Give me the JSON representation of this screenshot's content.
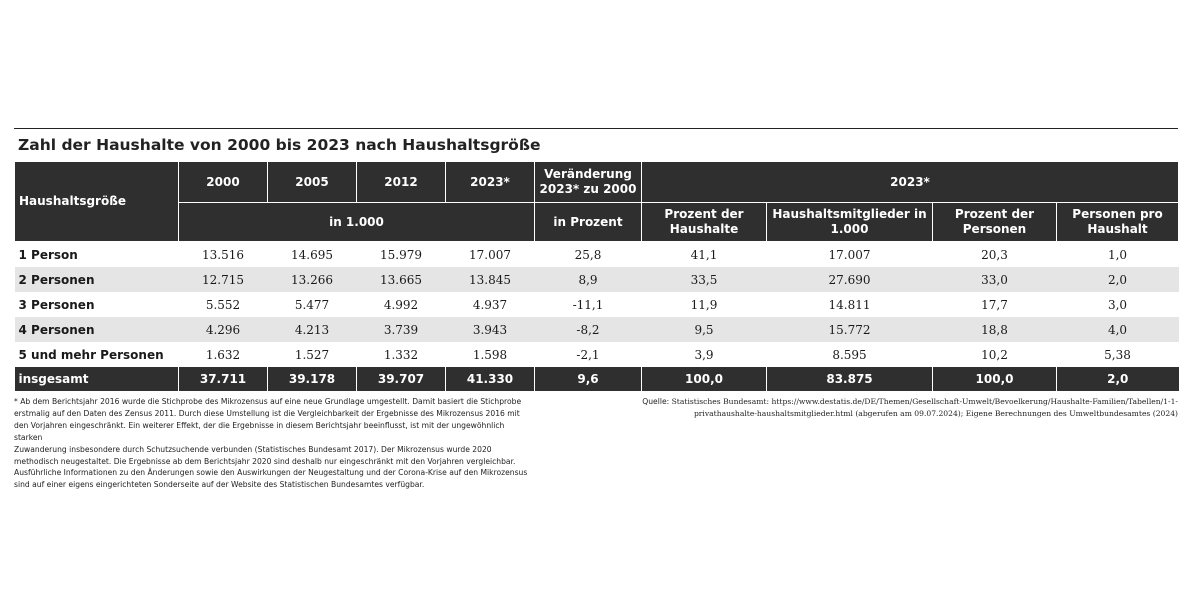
{
  "title": "Zahl der Haushalte von 2000 bis 2023 nach Haushaltsgröße",
  "header": {
    "col_label": "Haushaltsgröße",
    "years": [
      "2000",
      "2005",
      "2012",
      "2023*"
    ],
    "change": "Veränderung 2023* zu 2000",
    "year_2023": "2023*",
    "unit_thousands": "in 1.000",
    "unit_percent": "in Prozent",
    "sub_cols": [
      "Prozent der Haushalte",
      "Haushaltsmitglieder in 1.000",
      "Prozent der Personen",
      "Personen pro Haushalt"
    ]
  },
  "rows": [
    {
      "label": "1 Person",
      "v": [
        "13.516",
        "14.695",
        "15.979",
        "17.007",
        "25,8",
        "41,1",
        "17.007",
        "20,3",
        "1,0"
      ]
    },
    {
      "label": "2 Personen",
      "v": [
        "12.715",
        "13.266",
        "13.665",
        "13.845",
        "8,9",
        "33,5",
        "27.690",
        "33,0",
        "2,0"
      ]
    },
    {
      "label": "3 Personen",
      "v": [
        "5.552",
        "5.477",
        "4.992",
        "4.937",
        "-11,1",
        "11,9",
        "14.811",
        "17,7",
        "3,0"
      ]
    },
    {
      "label": "4 Personen",
      "v": [
        "4.296",
        "4.213",
        "3.739",
        "3.943",
        "-8,2",
        "9,5",
        "15.772",
        "18,8",
        "4,0"
      ]
    },
    {
      "label": "5 und mehr Personen",
      "v": [
        "1.632",
        "1.527",
        "1.332",
        "1.598",
        "-2,1",
        "3,9",
        "8.595",
        "10,2",
        "5,38"
      ]
    }
  ],
  "total": {
    "label": "insgesamt",
    "v": [
      "37.711",
      "39.178",
      "39.707",
      "41.330",
      "9,6",
      "100,0",
      "83.875",
      "100,0",
      "2,0"
    ]
  },
  "footnote": [
    "* Ab dem Berichtsjahr 2016 wurde die Stichprobe des Mikrozensus auf eine neue Grundlage umgestellt. Damit basiert die Stichprobe",
    "erstmalig auf den Daten des Zensus 2011. Durch diese Umstellung ist die Vergleichbarkeit der Ergebnisse des Mikrozensus 2016 mit",
    "den Vorjahren eingeschränkt. Ein weiterer Effekt, der die Ergebnisse in diesem Berichtsjahr beeinflusst, ist mit der ungewöhnlich starken",
    "Zuwanderung insbesondere durch Schutzsuchende verbunden (Statistisches Bundesamt 2017). Der Mikrozensus wurde 2020",
    "methodisch neugestaltet. Die Ergebnisse ab dem Berichtsjahr 2020 sind deshalb nur eingeschränkt mit den Vorjahren vergleichbar.",
    "Ausführliche Informationen zu den Änderungen sowie den Auswirkungen der Neugestaltung und der Corona-Krise auf den Mikrozensus",
    "sind auf einer eigens eingerichteten Sonderseite auf der Website des Statistischen Bundesamtes verfügbar."
  ],
  "source": {
    "label": "Quelle:",
    "lines": [
      "Statistisches Bundesamt: https://www.destatis.de/DE/Themen/Gesellschaft-Umwelt/Bevoelkerung/Haushalte-Familien/Tabellen/1-1-",
      "privathaushalte-haushaltsmitglieder.html (abgerufen am 09.07.2024); Eigene Berechnungen des Umweltbundesamtes (2024)"
    ]
  }
}
